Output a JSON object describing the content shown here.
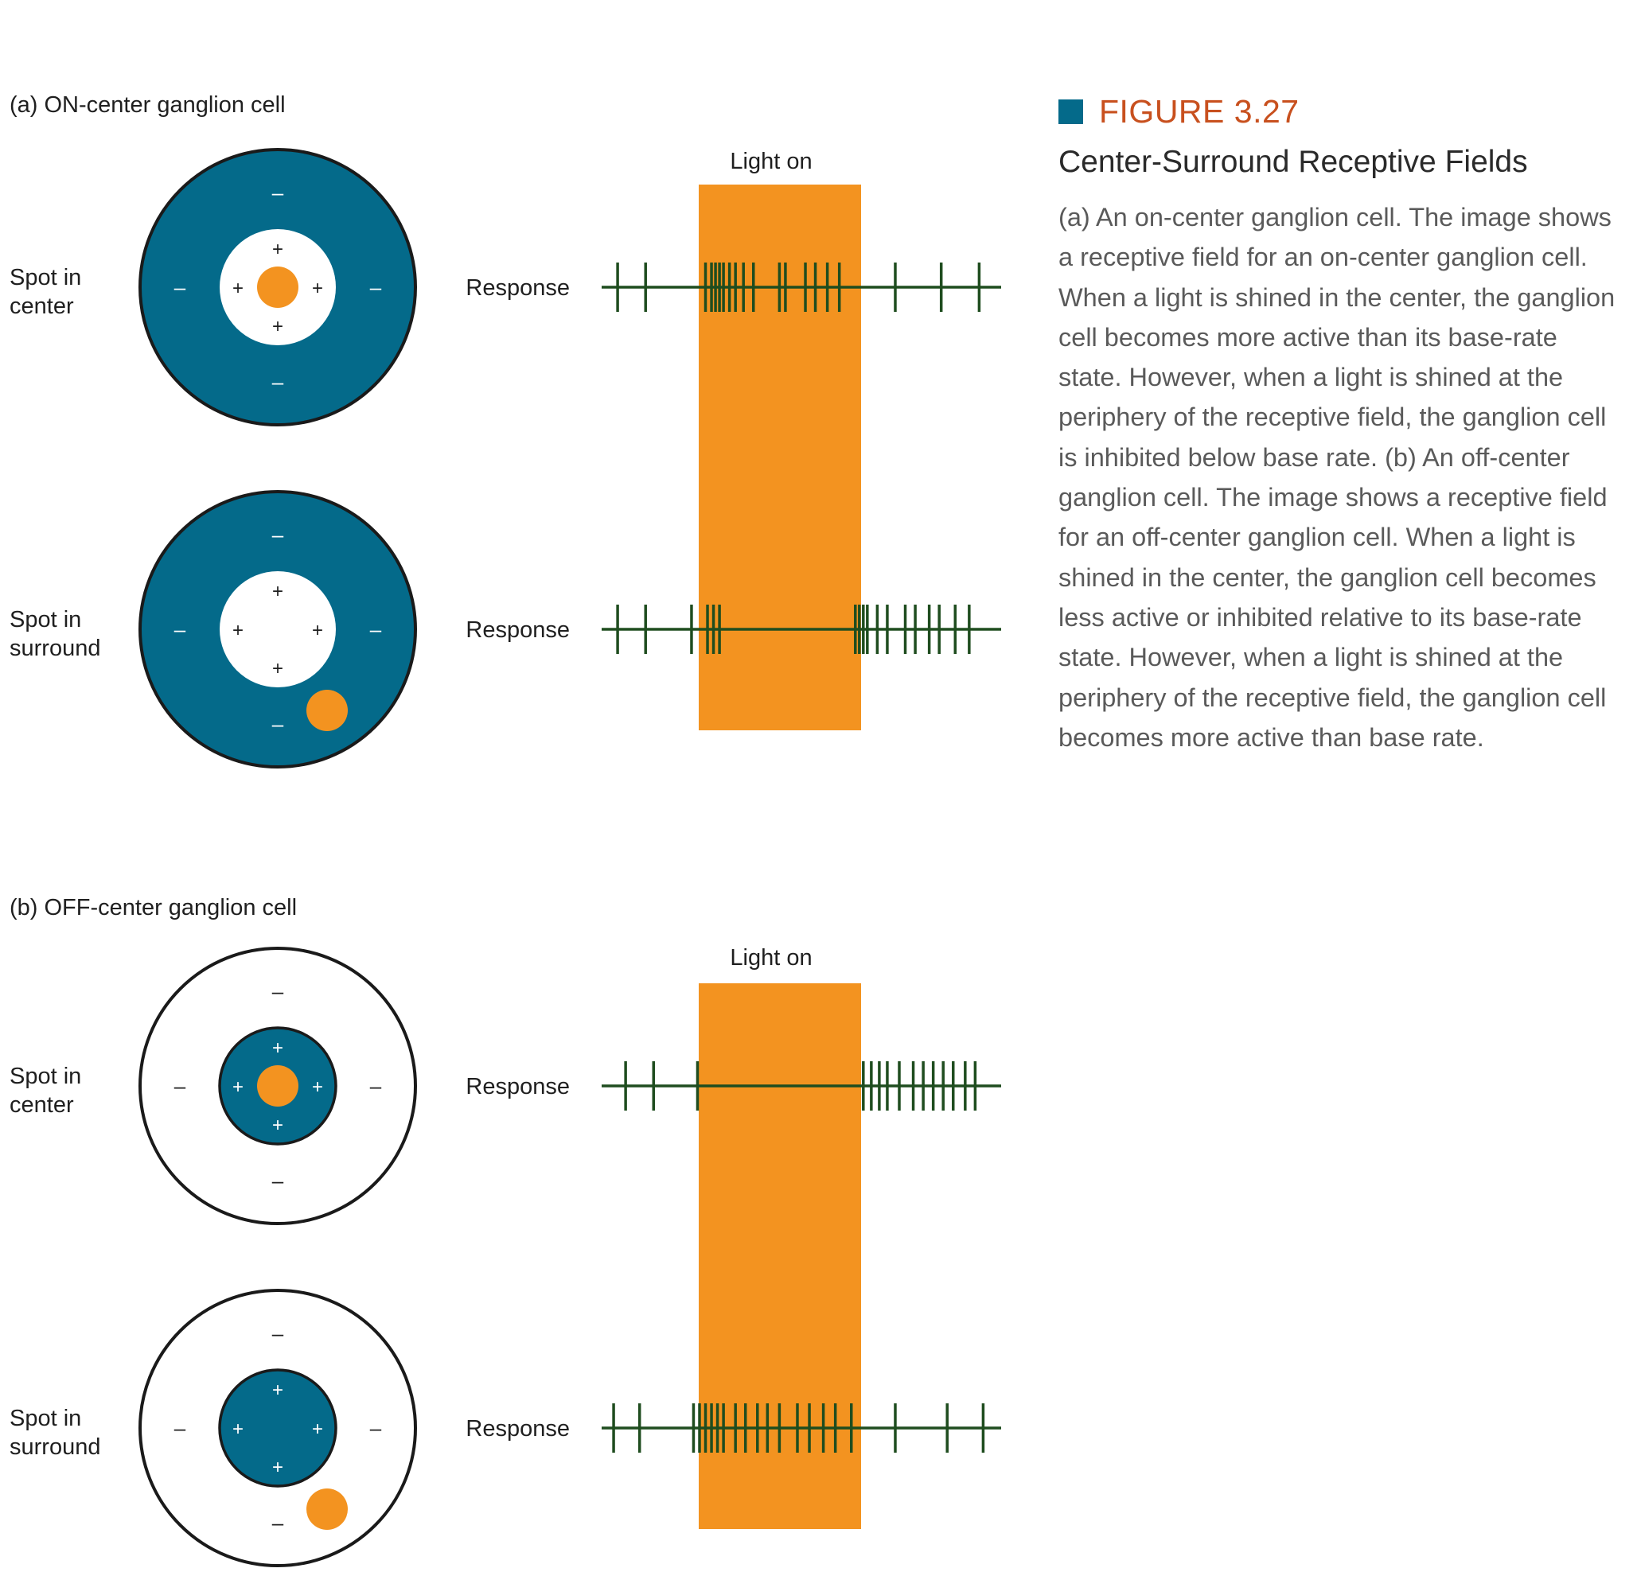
{
  "colors": {
    "teal": "#046a8a",
    "orange": "#f39320",
    "spike_green": "#1f4d1f",
    "outline": "#1a1a1a",
    "caption_accent": "#c8501e"
  },
  "panel_a": {
    "title": "(a) ON-center ganglion cell",
    "light_label": "Light on",
    "rows": [
      {
        "label_line1": "Spot in",
        "label_line2": "center",
        "response_label": "Response",
        "stim": "center",
        "center_sign": "+",
        "surround_sign": "–",
        "spikes": [
          0.04,
          0.11,
          0.26,
          0.275,
          0.285,
          0.295,
          0.305,
          0.32,
          0.335,
          0.355,
          0.38,
          0.445,
          0.46,
          0.51,
          0.535,
          0.565,
          0.595,
          0.735,
          0.85,
          0.945
        ]
      },
      {
        "label_line1": "Spot in",
        "label_line2": "surround",
        "response_label": "Response",
        "stim": "surround",
        "center_sign": "+",
        "surround_sign": "–",
        "spikes": [
          0.04,
          0.11,
          0.225,
          0.265,
          0.28,
          0.295,
          0.635,
          0.645,
          0.655,
          0.665,
          0.69,
          0.715,
          0.76,
          0.785,
          0.82,
          0.845,
          0.885,
          0.92
        ]
      }
    ]
  },
  "panel_b": {
    "title": "(b) OFF-center ganglion cell",
    "light_label": "Light on",
    "rows": [
      {
        "label_line1": "Spot in",
        "label_line2": "center",
        "response_label": "Response",
        "stim": "center",
        "center_sign": "+",
        "surround_sign": "–",
        "spikes": [
          0.06,
          0.13,
          0.24,
          0.655,
          0.675,
          0.695,
          0.715,
          0.745,
          0.78,
          0.805,
          0.83,
          0.855,
          0.88,
          0.91,
          0.935
        ]
      },
      {
        "label_line1": "Spot in",
        "label_line2": "surround",
        "response_label": "Response",
        "stim": "surround",
        "center_sign": "+",
        "surround_sign": "–",
        "spikes": [
          0.03,
          0.095,
          0.23,
          0.245,
          0.26,
          0.275,
          0.29,
          0.305,
          0.335,
          0.36,
          0.39,
          0.415,
          0.445,
          0.49,
          0.52,
          0.555,
          0.585,
          0.625,
          0.735,
          0.865,
          0.955
        ]
      }
    ]
  },
  "caption": {
    "number": "FIGURE 3.27",
    "title": "Center-Surround Receptive Fields",
    "text": "(a) An on-center ganglion cell. The image shows a receptive field for an on-center ganglion cell. When a light is shined in the center, the ganglion cell becomes more active than its base-rate state. However, when a light is shined at the periphery of the receptive field, the ganglion cell is inhibited below base rate. (b) An off-center ganglion cell. The image shows a receptive field for an off-center ganglion cell. When a light is shined in the center, the ganglion cell becomes less active or inhibited relative to its base-rate state. However, when a light is shined at the periphery of the receptive field, the ganglion cell becomes more active than base rate."
  }
}
